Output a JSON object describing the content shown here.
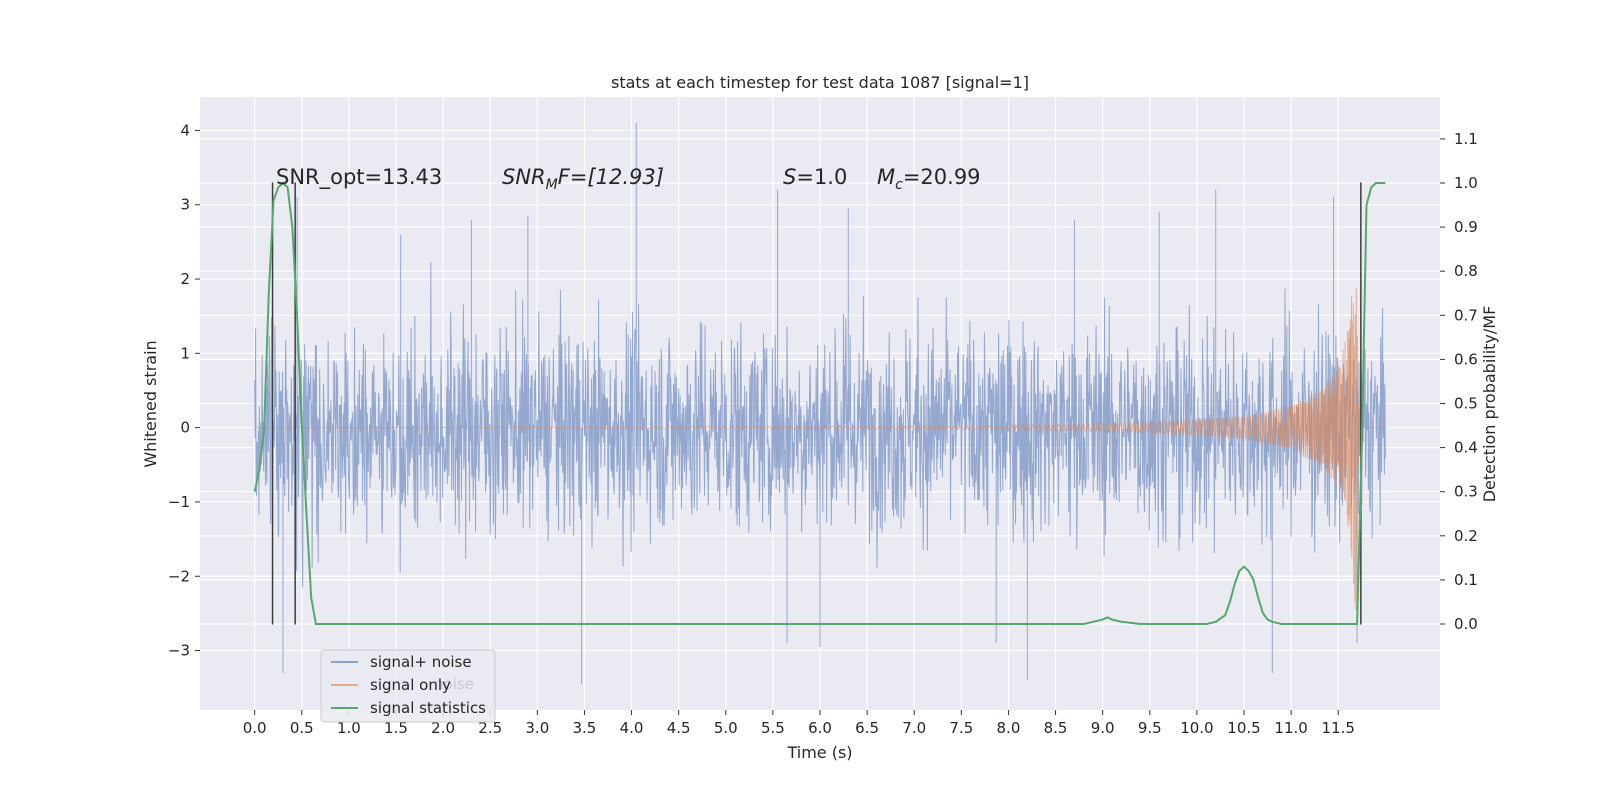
{
  "chart_data": {
    "type": "line",
    "title": "stats at each timestep for test data 1087 [signal=1]",
    "xlabel": "Time (s)",
    "ylabel_left": "Whitened strain",
    "ylabel_right": "Detection probability/MF",
    "xlim": [
      -0.58,
      12.58
    ],
    "ylim_left": [
      -3.8,
      4.45
    ],
    "ylim_right": [
      -0.195,
      1.195
    ],
    "x_ticks": [
      "0.0",
      "0.5",
      "1.0",
      "1.5",
      "2.0",
      "2.5",
      "3.0",
      "3.5",
      "4.0",
      "4.5",
      "5.0",
      "5.5",
      "6.0",
      "6.5",
      "7.0",
      "7.5",
      "8.0",
      "8.5",
      "9.0",
      "9.5",
      "10.0",
      "10.5",
      "11.0",
      "11.5"
    ],
    "y_ticks_left": [
      "−3",
      "−2",
      "−1",
      "0",
      "1",
      "2",
      "3",
      "4"
    ],
    "y_ticks_right": [
      "0.0",
      "0.1",
      "0.2",
      "0.3",
      "0.4",
      "0.5",
      "0.6",
      "0.7",
      "0.8",
      "0.9",
      "1.0",
      "1.1"
    ],
    "grid": true,
    "legend_position": "lower-left",
    "legend": [
      "signal+ noise",
      "signal only",
      "signal statistics"
    ],
    "legend_ghost_text": "noise",
    "colors": {
      "signal_noise": "#8ea3cc",
      "signal_only": "#dd8452",
      "signal_statistics": "#55a868",
      "markers": "#3d3d3d",
      "axes_bg": "#eaeaf2",
      "grid": "#ffffff"
    },
    "annotations": {
      "snr_opt": "SNR_opt=13.43",
      "snr_mf_name": "SNR",
      "snr_mf_sub": "M",
      "snr_mf_rest": "F=[12.93]",
      "s_name": "S",
      "s_rest": "=1.0",
      "mc_name": "M",
      "mc_sub": "c",
      "mc_rest": "=20.99"
    },
    "series": [
      {
        "name": "signal+ noise",
        "axis": "left",
        "description": "dense noisy strain, envelope roughly ±1.5 with spikes",
        "spikes": [
          [
            4.05,
            4.1
          ],
          [
            3.47,
            -3.45
          ],
          [
            8.2,
            -3.4
          ],
          [
            10.8,
            -3.3
          ],
          [
            0.3,
            -3.3
          ],
          [
            6.0,
            -2.95
          ],
          [
            5.65,
            -2.9
          ],
          [
            7.87,
            -2.9
          ],
          [
            11.7,
            -2.9
          ],
          [
            2.3,
            2.8
          ],
          [
            2.9,
            2.85
          ],
          [
            5.55,
            3.2
          ],
          [
            6.3,
            2.95
          ],
          [
            10.2,
            3.2
          ],
          [
            11.45,
            3.1
          ],
          [
            0.45,
            3.1
          ],
          [
            1.55,
            2.6
          ],
          [
            8.7,
            2.8
          ],
          [
            9.6,
            2.9
          ]
        ]
      },
      {
        "name": "signal only",
        "axis": "left",
        "description": "chirp waveform, flat until ~7.5 s, growing to ±2.6 near 11.7 s",
        "amplitude": [
          [
            0.0,
            0.0
          ],
          [
            7.5,
            0.02
          ],
          [
            8.5,
            0.04
          ],
          [
            9.5,
            0.07
          ],
          [
            10.5,
            0.15
          ],
          [
            11.0,
            0.3
          ],
          [
            11.3,
            0.5
          ],
          [
            11.5,
            0.8
          ],
          [
            11.6,
            1.3
          ],
          [
            11.65,
            1.9
          ],
          [
            11.69,
            2.6
          ],
          [
            11.72,
            0.0
          ],
          [
            12.0,
            0.0
          ]
        ]
      },
      {
        "name": "signal statistics",
        "axis": "right",
        "x": [
          0.0,
          0.05,
          0.1,
          0.15,
          0.2,
          0.25,
          0.3,
          0.35,
          0.4,
          0.45,
          0.5,
          0.55,
          0.6,
          0.65,
          0.75,
          3.0,
          5.0,
          5.6,
          6.0,
          6.5,
          8.0,
          8.8,
          9.0,
          9.05,
          9.1,
          9.2,
          9.4,
          9.6,
          9.8,
          10.0,
          10.1,
          10.2,
          10.3,
          10.35,
          10.4,
          10.45,
          10.5,
          10.55,
          10.6,
          10.65,
          10.7,
          10.75,
          10.8,
          10.9,
          11.0,
          11.5,
          11.7,
          11.75,
          11.8,
          11.85,
          11.9,
          11.95,
          12.0
        ],
        "values": [
          0.3,
          0.35,
          0.44,
          0.75,
          0.96,
          0.99,
          1.0,
          0.99,
          0.9,
          0.7,
          0.45,
          0.25,
          0.06,
          0.0,
          0.0,
          0.0,
          0.0,
          0.0,
          0.0,
          0.0,
          0.0,
          0.0,
          0.01,
          0.015,
          0.01,
          0.005,
          0.0,
          0.0,
          0.0,
          0.0,
          0.0,
          0.005,
          0.02,
          0.05,
          0.09,
          0.12,
          0.13,
          0.12,
          0.1,
          0.06,
          0.025,
          0.01,
          0.005,
          0.0,
          0.0,
          0.0,
          0.0,
          0.4,
          0.95,
          0.99,
          1.0,
          1.0,
          1.0
        ]
      }
    ],
    "marker_lines": [
      {
        "x": 0.19,
        "top": 3.3,
        "bottom": -2.65
      },
      {
        "x": 0.43,
        "top": 3.3,
        "bottom": -2.65
      },
      {
        "x": 11.74,
        "top": 3.3,
        "bottom": -2.65
      }
    ]
  }
}
